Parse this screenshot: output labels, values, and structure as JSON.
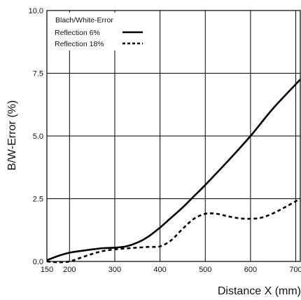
{
  "chart_data": {
    "type": "line",
    "title": "",
    "xlabel": "Distance X (mm)",
    "ylabel": "B/W-Error (%)",
    "xlim": [
      150,
      710
    ],
    "ylim": [
      0,
      10
    ],
    "x_ticks": [
      "150",
      "200",
      "300",
      "400",
      "500",
      "600",
      "700"
    ],
    "y_ticks": [
      "0.0",
      "2.5",
      "5.0",
      "7.5",
      "10.0"
    ],
    "grid": true,
    "legend": {
      "title": "Blach/White-Error",
      "placement": "top-left"
    },
    "series": [
      {
        "name": "Reflection 6%",
        "style": "solid",
        "color": "#000000",
        "x": [
          150,
          175,
          200,
          225,
          250,
          275,
          300,
          325,
          350,
          375,
          400,
          425,
          450,
          475,
          500,
          550,
          600,
          650,
          710
        ],
        "y": [
          0.05,
          0.22,
          0.35,
          0.42,
          0.48,
          0.53,
          0.55,
          0.6,
          0.75,
          1.0,
          1.35,
          1.75,
          2.15,
          2.6,
          3.05,
          4.0,
          5.0,
          6.1,
          7.25
        ]
      },
      {
        "name": "Reflection 18%",
        "style": "dashed",
        "color": "#000000",
        "x": [
          150,
          175,
          200,
          225,
          250,
          275,
          300,
          325,
          350,
          375,
          400,
          425,
          450,
          475,
          500,
          525,
          550,
          575,
          600,
          625,
          650,
          675,
          710
        ],
        "y": [
          0.0,
          -0.03,
          0.0,
          0.15,
          0.3,
          0.42,
          0.48,
          0.52,
          0.55,
          0.58,
          0.6,
          0.85,
          1.3,
          1.7,
          1.9,
          1.9,
          1.8,
          1.72,
          1.7,
          1.75,
          1.92,
          2.15,
          2.5
        ]
      }
    ]
  }
}
